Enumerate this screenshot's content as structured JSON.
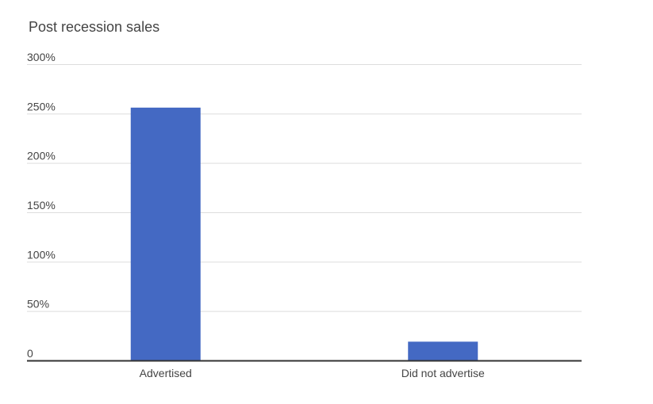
{
  "chart_data": {
    "type": "bar",
    "title": "Post recession sales",
    "xlabel": "",
    "ylabel": "",
    "categories": [
      "Advertised",
      "Did not advertise"
    ],
    "values": [
      256,
      19
    ],
    "value_unit": "%",
    "ylim": [
      0,
      300
    ],
    "y_ticks": [
      {
        "value": 0,
        "label": "0"
      },
      {
        "value": 50,
        "label": "50%"
      },
      {
        "value": 100,
        "label": "100%"
      },
      {
        "value": 150,
        "label": "150%"
      },
      {
        "value": 200,
        "label": "200%"
      },
      {
        "value": 250,
        "label": "250%"
      },
      {
        "value": 300,
        "label": "300%"
      }
    ],
    "grid": true,
    "legend": "none",
    "bar_color": "#4469C3",
    "grid_color": "#DDDDDD",
    "axis_color": "#333333",
    "text_color": "#444444"
  }
}
